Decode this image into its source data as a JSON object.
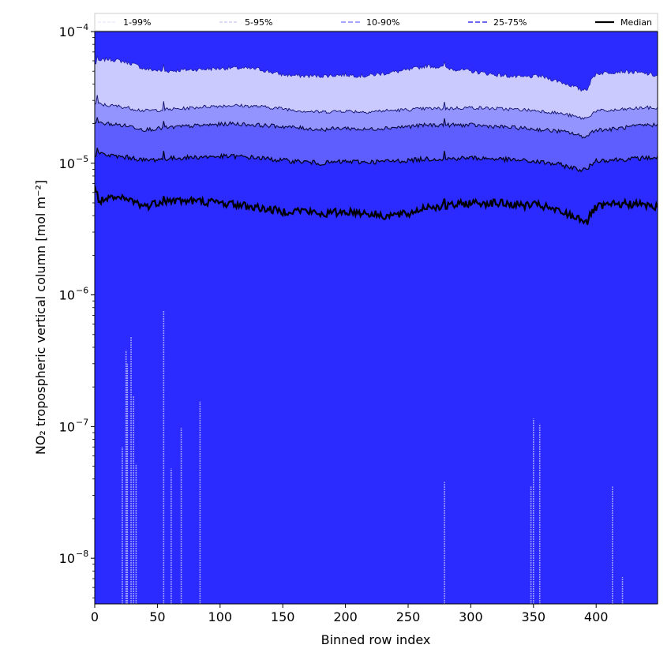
{
  "chart_data": {
    "type": "area",
    "title": "",
    "xlabel": "Binned row index",
    "ylabel": "NO₂ tropospheric vertical column [mol m⁻²]",
    "yscale": "log",
    "xlim": [
      0,
      449
    ],
    "ylim": [
      4.5e-09,
      0.0001
    ],
    "x_ticks": [
      0,
      50,
      100,
      150,
      200,
      250,
      300,
      350,
      400
    ],
    "x_tick_labels": [
      "0",
      "50",
      "100",
      "150",
      "200",
      "250",
      "300",
      "350",
      "400"
    ],
    "y_tick_bases": [
      "10",
      "10",
      "10",
      "10",
      "10"
    ],
    "y_tick_exponents": [
      "−8",
      "−7",
      "−6",
      "−5",
      "−4"
    ],
    "y_tick_values": [
      1e-08,
      1e-07,
      1e-06,
      1e-05,
      0.0001
    ],
    "legend": [
      "1-99%",
      "5-95%",
      "10-90%",
      "25-75%",
      "Median"
    ],
    "legend_position": "top",
    "colors": {
      "band_1_99": "#2b2bff",
      "band_5_95": "#cacaff",
      "band_10_90": "#9494ff",
      "band_25_75": "#5e5eff",
      "line_10_90": "#8888ff",
      "line_25_75": "#6666ee",
      "median": "#000000"
    },
    "profile_x": [
      0,
      2,
      5,
      10,
      20,
      30,
      40,
      55,
      70,
      90,
      110,
      130,
      150,
      165,
      180,
      200,
      215,
      230,
      250,
      265,
      280,
      300,
      320,
      340,
      355,
      370,
      380,
      388,
      393,
      397,
      400,
      410,
      420,
      430,
      440,
      449
    ],
    "series": [
      {
        "name": "99th percentile",
        "values": [
          5.7e-05,
          5.8e-05,
          6e-05,
          6.2e-05,
          6e-05,
          5.7e-05,
          5.2e-05,
          5e-05,
          5.1e-05,
          5.2e-05,
          5.3e-05,
          5.2e-05,
          4.7e-05,
          4.6e-05,
          4.6e-05,
          4.7e-05,
          4.6e-05,
          4.8e-05,
          5.1e-05,
          5.5e-05,
          5.3e-05,
          5e-05,
          4.7e-05,
          4.5e-05,
          4.6e-05,
          4.2e-05,
          3.9e-05,
          3.6e-05,
          3.7e-05,
          4.4e-05,
          4.8e-05,
          4.9e-05,
          5e-05,
          4.9e-05,
          4.8e-05,
          4.6e-05
        ]
      },
      {
        "name": "95th percentile",
        "values": [
          2.8e-05,
          2.85e-05,
          2.8e-05,
          2.75e-05,
          2.7e-05,
          2.6e-05,
          2.5e-05,
          2.55e-05,
          2.6e-05,
          2.7e-05,
          2.75e-05,
          2.7e-05,
          2.6e-05,
          2.5e-05,
          2.45e-05,
          2.5e-05,
          2.45e-05,
          2.5e-05,
          2.55e-05,
          2.6e-05,
          2.6e-05,
          2.65e-05,
          2.6e-05,
          2.55e-05,
          2.5e-05,
          2.4e-05,
          2.3e-05,
          2.2e-05,
          2.2e-05,
          2.4e-05,
          2.5e-05,
          2.5e-05,
          2.55e-05,
          2.6e-05,
          2.65e-05,
          2.6e-05
        ]
      },
      {
        "name": "90th percentile",
        "values": [
          2e-05,
          2.05e-05,
          2e-05,
          2e-05,
          1.95e-05,
          1.9e-05,
          1.8e-05,
          1.85e-05,
          1.9e-05,
          1.95e-05,
          2e-05,
          1.95e-05,
          1.9e-05,
          1.85e-05,
          1.8e-05,
          1.85e-05,
          1.8e-05,
          1.85e-05,
          1.9e-05,
          1.95e-05,
          1.95e-05,
          1.95e-05,
          1.9e-05,
          1.85e-05,
          1.8e-05,
          1.75e-05,
          1.7e-05,
          1.6e-05,
          1.6e-05,
          1.75e-05,
          1.8e-05,
          1.8e-05,
          1.85e-05,
          1.9e-05,
          1.95e-05,
          1.95e-05
        ]
      },
      {
        "name": "75th percentile",
        "values": [
          1.15e-05,
          1.2e-05,
          1.18e-05,
          1.15e-05,
          1.12e-05,
          1.1e-05,
          1.05e-05,
          1.08e-05,
          1.1e-05,
          1.12e-05,
          1.13e-05,
          1.1e-05,
          1.05e-05,
          1.03e-05,
          1e-05,
          1.03e-05,
          1.02e-05,
          1.03e-05,
          1.05e-05,
          1.08e-05,
          1.08e-05,
          1.1e-05,
          1.08e-05,
          1.05e-05,
          1.02e-05,
          9.8e-06,
          9.3e-06,
          8.9e-06,
          9e-06,
          1e-05,
          1.05e-05,
          1.06e-05,
          1.07e-05,
          1.08e-05,
          1.1e-05,
          1.1e-05
        ]
      },
      {
        "name": "Median",
        "values": [
          6.5e-06,
          5.3e-06,
          5.2e-06,
          5.3e-06,
          5.4e-06,
          5.2e-06,
          4.7e-06,
          5.2e-06,
          5.2e-06,
          5.1e-06,
          4.9e-06,
          4.6e-06,
          4.3e-06,
          4.4e-06,
          4.1e-06,
          4.3e-06,
          4.2e-06,
          4e-06,
          4.1e-06,
          4.7e-06,
          4.7e-06,
          5e-06,
          5e-06,
          4.8e-06,
          4.8e-06,
          4.3e-06,
          4e-06,
          3.8e-06,
          3.6e-06,
          4.3e-06,
          4.6e-06,
          4.8e-06,
          4.9e-06,
          4.9e-06,
          4.8e-06,
          4.6e-06
        ]
      }
    ],
    "lower_spikes": [
      {
        "x": 22,
        "top": 7e-08
      },
      {
        "x": 25,
        "top": 3.8e-07
      },
      {
        "x": 26,
        "top": 3e-07
      },
      {
        "x": 29,
        "top": 4.8e-07
      },
      {
        "x": 31,
        "top": 1.7e-07
      },
      {
        "x": 33,
        "top": 5.2e-08
      },
      {
        "x": 55,
        "top": 7.6e-07
      },
      {
        "x": 61,
        "top": 4.8e-08
      },
      {
        "x": 69,
        "top": 9.8e-08
      },
      {
        "x": 84,
        "top": 1.55e-07
      },
      {
        "x": 279,
        "top": 3.8e-08
      },
      {
        "x": 348,
        "top": 3.5e-08
      },
      {
        "x": 350,
        "top": 1.15e-07
      },
      {
        "x": 355,
        "top": 1.05e-07
      },
      {
        "x": 413,
        "top": 3.5e-08
      },
      {
        "x": 421,
        "top": 7.2e-09
      }
    ]
  }
}
